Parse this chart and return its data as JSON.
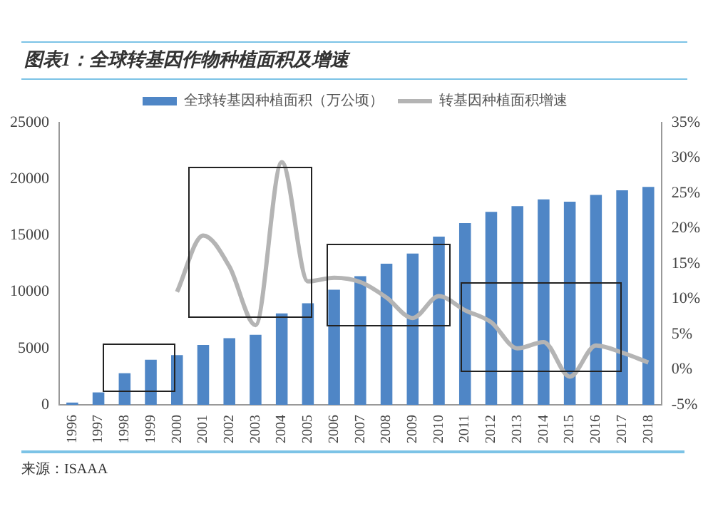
{
  "chart_data": {
    "type": "bar",
    "title": "图表1：全球转基因作物种植面积及增速",
    "categories": [
      "1996",
      "1997",
      "1998",
      "1999",
      "2000",
      "2001",
      "2002",
      "2003",
      "2004",
      "2005",
      "2006",
      "2007",
      "2008",
      "2009",
      "2010",
      "2011",
      "2012",
      "2013",
      "2014",
      "2015",
      "2016",
      "2017",
      "2018"
    ],
    "series": [
      {
        "name": "全球转基因种植面积（万公顷）",
        "color": "#4f86c6",
        "values": [
          200,
          1100,
          2800,
          4000,
          4400,
          5300,
          5900,
          6200,
          8100,
          9000,
          10200,
          11400,
          12500,
          13400,
          14900,
          16100,
          17100,
          17600,
          18200,
          18000,
          18600,
          19000,
          19300
        ]
      },
      {
        "name": "转基因种植面积增速",
        "type": "line",
        "axis": "y2",
        "color": "#b4b4b4",
        "values": [
          null,
          null,
          null,
          null,
          11,
          19,
          14.6,
          6.3,
          29.4,
          12.5,
          13,
          12.4,
          10.2,
          7.3,
          10.4,
          8.4,
          6.7,
          3,
          3.9,
          -1,
          3.4,
          2.4,
          1
        ]
      }
    ],
    "ylim": [
      0,
      25000
    ],
    "yticks": [
      0,
      5000,
      10000,
      15000,
      20000,
      25000
    ],
    "y2lim": [
      -5,
      35
    ],
    "y2ticks": [
      {
        "value": -5,
        "label": "-5%"
      },
      {
        "value": 0,
        "label": "0%"
      },
      {
        "value": 5,
        "label": "5%"
      },
      {
        "value": 10,
        "label": "10%"
      },
      {
        "value": 15,
        "label": "15%"
      },
      {
        "value": 20,
        "label": "20%"
      },
      {
        "value": 25,
        "label": "25%"
      },
      {
        "value": 30,
        "label": "30%"
      },
      {
        "value": 35,
        "label": "35%"
      }
    ],
    "grid": false,
    "legend": "top",
    "marker": "none",
    "line_style": "solid",
    "annotations": [
      "来源：ISAAA"
    ]
  }
}
